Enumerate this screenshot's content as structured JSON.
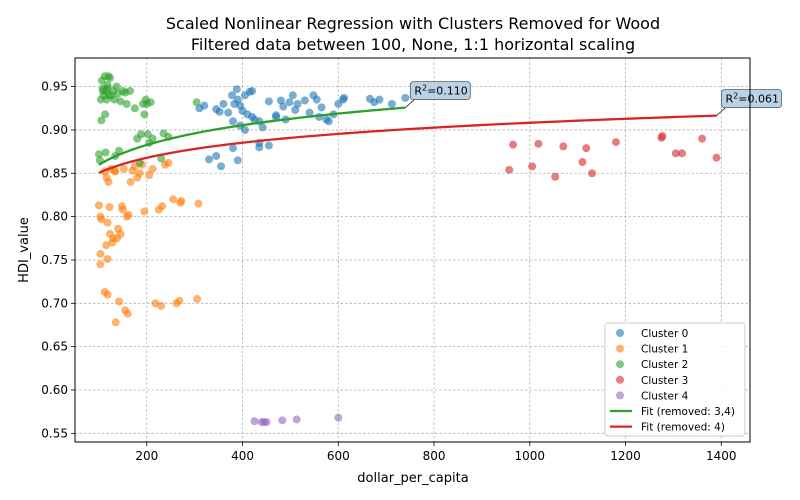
{
  "chart_data": {
    "type": "scatter",
    "title_line1": "Scaled Nonlinear Regression with Clusters Removed for Wood",
    "title_line2": "Filtered data between 100, None, 1:1 horizontal scaling",
    "xlabel": "dollar_per_capita",
    "ylabel": "HDI_value",
    "xlim": [
      50,
      1460
    ],
    "ylim": [
      0.54,
      0.983
    ],
    "xticks": [
      200,
      400,
      600,
      800,
      1000,
      1200,
      1400
    ],
    "yticks": [
      0.55,
      0.6,
      0.65,
      0.7,
      0.75,
      0.8,
      0.85,
      0.9,
      0.95
    ],
    "grid": true,
    "legend_position": "lower-right",
    "series": [
      {
        "name": "Cluster 0",
        "color": "#1f77b4",
        "points": [
          [
            310,
            0.925
          ],
          [
            320,
            0.928
          ],
          [
            345,
            0.924
          ],
          [
            352,
            0.921
          ],
          [
            360,
            0.93
          ],
          [
            370,
            0.92
          ],
          [
            378,
            0.94
          ],
          [
            383,
            0.93
          ],
          [
            388,
            0.947
          ],
          [
            390,
            0.935
          ],
          [
            395,
            0.928
          ],
          [
            400,
            0.922
          ],
          [
            405,
            0.94
          ],
          [
            410,
            0.918
          ],
          [
            415,
            0.944
          ],
          [
            420,
            0.945
          ],
          [
            425,
            0.912
          ],
          [
            435,
            0.91
          ],
          [
            442,
            0.903
          ],
          [
            455,
            0.933
          ],
          [
            470,
            0.917
          ],
          [
            480,
            0.934
          ],
          [
            485,
            0.927
          ],
          [
            490,
            0.912
          ],
          [
            498,
            0.932
          ],
          [
            505,
            0.94
          ],
          [
            510,
            0.923
          ],
          [
            515,
            0.93
          ],
          [
            530,
            0.934
          ],
          [
            540,
            0.92
          ],
          [
            548,
            0.94
          ],
          [
            555,
            0.935
          ],
          [
            565,
            0.926
          ],
          [
            575,
            0.912
          ],
          [
            580,
            0.91
          ],
          [
            590,
            0.918
          ],
          [
            600,
            0.93
          ],
          [
            610,
            0.935
          ],
          [
            612,
            0.937
          ],
          [
            666,
            0.936
          ],
          [
            675,
            0.932
          ],
          [
            686,
            0.935
          ],
          [
            712,
            0.93
          ],
          [
            740,
            0.937
          ],
          [
            330,
            0.866
          ],
          [
            345,
            0.87
          ],
          [
            355,
            0.858
          ],
          [
            380,
            0.879
          ],
          [
            390,
            0.865
          ],
          [
            395,
            0.905
          ],
          [
            405,
            0.9
          ],
          [
            380,
            0.91
          ],
          [
            435,
            0.885
          ],
          [
            435,
            0.88
          ],
          [
            455,
            0.882
          ],
          [
            420,
            0.915
          ],
          [
            470,
            0.915
          ],
          [
            560,
            0.915
          ]
        ]
      },
      {
        "name": "Cluster 1",
        "color": "#ff7f0e",
        "points": [
          [
            100,
            0.813
          ],
          [
            103,
            0.8
          ],
          [
            105,
            0.797
          ],
          [
            103,
            0.757
          ],
          [
            103,
            0.745
          ],
          [
            112,
            0.713
          ],
          [
            118,
            0.71
          ],
          [
            115,
            0.767
          ],
          [
            118,
            0.751
          ],
          [
            118,
            0.793
          ],
          [
            120,
            0.84
          ],
          [
            122,
            0.811
          ],
          [
            123,
            0.78
          ],
          [
            125,
            0.855
          ],
          [
            128,
            0.77
          ],
          [
            130,
            0.775
          ],
          [
            133,
            0.853
          ],
          [
            135,
            0.678
          ],
          [
            138,
            0.775
          ],
          [
            140,
            0.786
          ],
          [
            142,
            0.702
          ],
          [
            145,
            0.78
          ],
          [
            148,
            0.812
          ],
          [
            150,
            0.808
          ],
          [
            152,
            0.855
          ],
          [
            155,
            0.692
          ],
          [
            158,
            0.8
          ],
          [
            160,
            0.688
          ],
          [
            162,
            0.802
          ],
          [
            166,
            0.84
          ],
          [
            170,
            0.853
          ],
          [
            175,
            0.858
          ],
          [
            180,
            0.845
          ],
          [
            185,
            0.85
          ],
          [
            190,
            0.86
          ],
          [
            195,
            0.806
          ],
          [
            205,
            0.848
          ],
          [
            212,
            0.855
          ],
          [
            218,
            0.7
          ],
          [
            225,
            0.808
          ],
          [
            230,
            0.697
          ],
          [
            232,
            0.812
          ],
          [
            238,
            0.86
          ],
          [
            245,
            0.862
          ],
          [
            255,
            0.82
          ],
          [
            262,
            0.7
          ],
          [
            268,
            0.703
          ],
          [
            270,
            0.816
          ],
          [
            272,
            0.818
          ],
          [
            305,
            0.705
          ],
          [
            308,
            0.815
          ],
          [
            112,
            0.852
          ],
          [
            116,
            0.845
          ],
          [
            134,
            0.852
          ]
        ]
      },
      {
        "name": "Cluster 2",
        "color": "#2ca02c",
        "points": [
          [
            100,
            0.872
          ],
          [
            102,
            0.865
          ],
          [
            104,
            0.935
          ],
          [
            105,
            0.911
          ],
          [
            106,
            0.957
          ],
          [
            108,
            0.948
          ],
          [
            110,
            0.94
          ],
          [
            112,
            0.962
          ],
          [
            113,
            0.918
          ],
          [
            114,
            0.874
          ],
          [
            115,
            0.945
          ],
          [
            116,
            0.935
          ],
          [
            118,
            0.952
          ],
          [
            120,
            0.962
          ],
          [
            121,
            0.94
          ],
          [
            123,
            0.96
          ],
          [
            126,
            0.94
          ],
          [
            130,
            0.945
          ],
          [
            132,
            0.935
          ],
          [
            134,
            0.87
          ],
          [
            137,
            0.95
          ],
          [
            140,
            0.942
          ],
          [
            142,
            0.876
          ],
          [
            145,
            0.933
          ],
          [
            150,
            0.945
          ],
          [
            155,
            0.943
          ],
          [
            158,
            0.93
          ],
          [
            165,
            0.945
          ],
          [
            175,
            0.925
          ],
          [
            180,
            0.89
          ],
          [
            185,
            0.862
          ],
          [
            188,
            0.895
          ],
          [
            192,
            0.93
          ],
          [
            195,
            0.918
          ],
          [
            198,
            0.935
          ],
          [
            200,
            0.93
          ],
          [
            202,
            0.895
          ],
          [
            205,
            0.885
          ],
          [
            208,
            0.932
          ],
          [
            212,
            0.89
          ],
          [
            235,
            0.896
          ],
          [
            230,
            0.867
          ],
          [
            245,
            0.892
          ],
          [
            304,
            0.932
          ],
          [
            108,
            0.945
          ],
          [
            118,
            0.948
          ]
        ]
      },
      {
        "name": "Cluster 3",
        "color": "#d62728",
        "points": [
          [
            957,
            0.854
          ],
          [
            965,
            0.883
          ],
          [
            1005,
            0.858
          ],
          [
            1018,
            0.884
          ],
          [
            1053,
            0.846
          ],
          [
            1070,
            0.881
          ],
          [
            1110,
            0.863
          ],
          [
            1118,
            0.879
          ],
          [
            1130,
            0.85
          ],
          [
            1180,
            0.886
          ],
          [
            1275,
            0.891
          ],
          [
            1277,
            0.893
          ],
          [
            1305,
            0.873
          ],
          [
            1318,
            0.873
          ],
          [
            1360,
            0.89
          ],
          [
            1390,
            0.868
          ]
        ]
      },
      {
        "name": "Cluster 4",
        "color": "#9467bd",
        "points": [
          [
            425,
            0.564
          ],
          [
            440,
            0.563
          ],
          [
            445,
            0.563
          ],
          [
            450,
            0.563
          ],
          [
            483,
            0.565
          ],
          [
            513,
            0.566
          ],
          [
            600,
            0.568
          ]
        ]
      }
    ],
    "fits": [
      {
        "name": "Fit (removed: 3,4)",
        "color": "#2ca02c",
        "x_range": [
          100,
          740
        ],
        "a": 0.7084,
        "b": 0.0329,
        "annotation": "=0.110"
      },
      {
        "name": "Fit (removed: 4)",
        "color": "#d62728",
        "x_range": [
          100,
          1390
        ],
        "a": 0.7349,
        "b": 0.0251,
        "annotation": "=0.061"
      }
    ]
  }
}
